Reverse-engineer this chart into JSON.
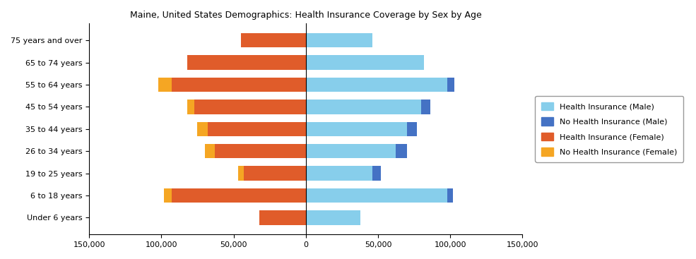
{
  "title": "Maine, United States Demographics: Health Insurance Coverage by Sex by Age",
  "categories": [
    "Under 6 years",
    "6 to 18 years",
    "19 to 25 years",
    "26 to 34 years",
    "35 to 44 years",
    "45 to 54 years",
    "55 to 64 years",
    "65 to 74 years",
    "75 years and over"
  ],
  "health_ins_male": [
    38000,
    98000,
    46000,
    62000,
    70000,
    80000,
    98000,
    82000,
    46000
  ],
  "no_health_ins_male": [
    0,
    4000,
    6000,
    8000,
    7000,
    6000,
    5000,
    0,
    0
  ],
  "health_ins_female": [
    32000,
    93000,
    43000,
    63000,
    68000,
    77000,
    93000,
    82000,
    45000
  ],
  "no_health_ins_female": [
    0,
    5000,
    4000,
    7000,
    7000,
    5000,
    9000,
    0,
    0
  ],
  "color_hi_male": "#87CEEB",
  "color_nhi_male": "#4472C4",
  "color_hi_female": "#E05C2A",
  "color_nhi_female": "#F5A623",
  "xlim": 150000,
  "xtick_vals": [
    -150000,
    -100000,
    -50000,
    0,
    50000,
    100000,
    150000
  ],
  "xtick_labels": [
    "150,000",
    "100,000",
    "50,000",
    "0",
    "50,000",
    "100,000",
    "150,000"
  ],
  "figsize": [
    9.85,
    3.67
  ],
  "dpi": 100
}
